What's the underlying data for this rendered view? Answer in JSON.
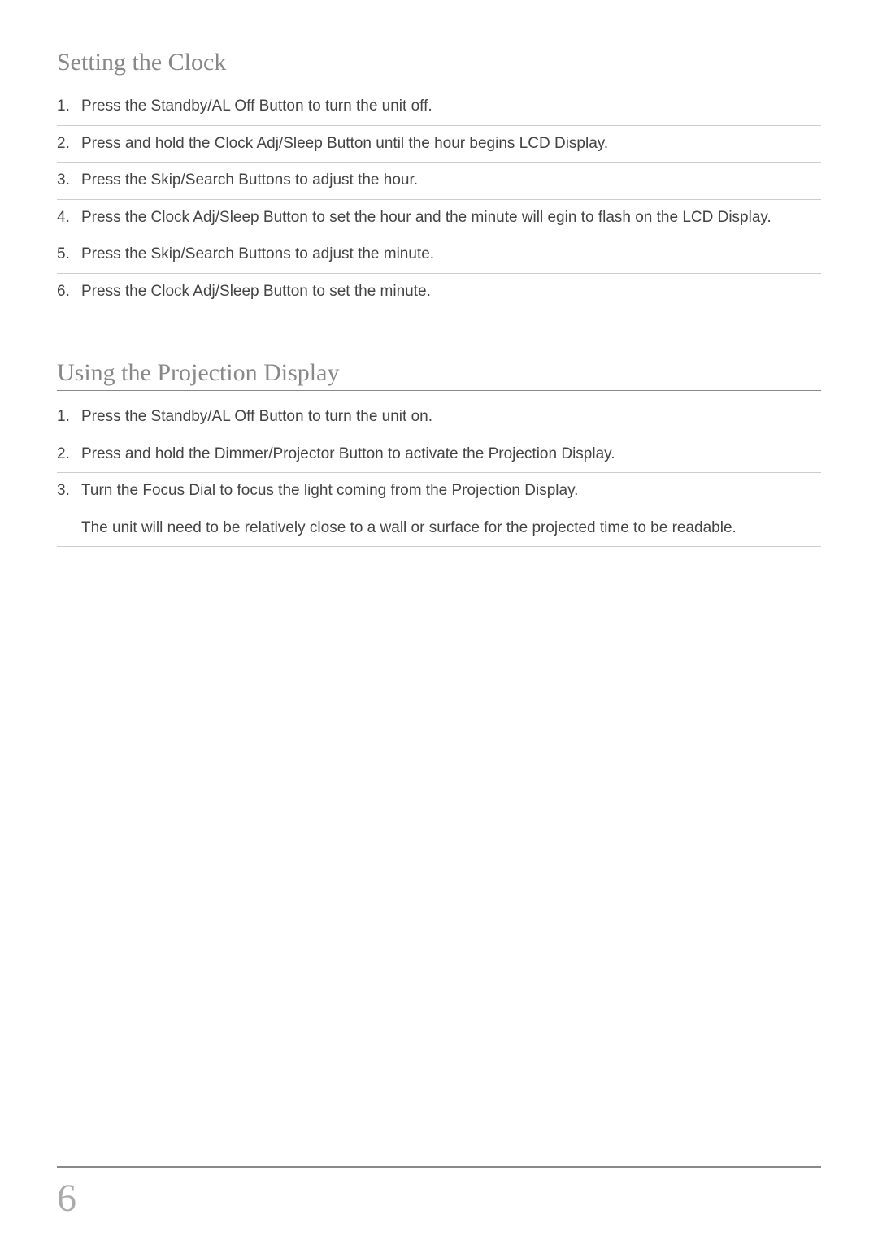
{
  "section1": {
    "heading": "Setting the Clock",
    "steps": [
      {
        "num": "1.",
        "text": "Press the Standby/AL Off Button to turn the unit off."
      },
      {
        "num": "2.",
        "text": "Press and hold the Clock Adj/Sleep Button until the hour begins LCD Display."
      },
      {
        "num": "3.",
        "text": "Press the Skip/Search Buttons to adjust the hour."
      },
      {
        "num": "4.",
        "text": "Press the Clock Adj/Sleep Button to set the hour and the minute will egin to flash on the LCD Display."
      },
      {
        "num": "5.",
        "text": "Press the Skip/Search Buttons to adjust the minute."
      },
      {
        "num": "6.",
        "text": "Press the Clock Adj/Sleep Button to set the minute."
      }
    ]
  },
  "section2": {
    "heading": "Using the Projection Display",
    "steps": [
      {
        "num": "1.",
        "text": "Press the Standby/AL Off Button to turn the unit on."
      },
      {
        "num": "2.",
        "text": "Press and hold the Dimmer/Projector Button to activate the Projection Display."
      },
      {
        "num": "3.",
        "text": "Turn the Focus Dial to focus the light coming from the Projection Display."
      }
    ],
    "note": "The unit will need to be relatively close to a wall or surface for the projected time to be readable."
  },
  "pageNumber": "6"
}
